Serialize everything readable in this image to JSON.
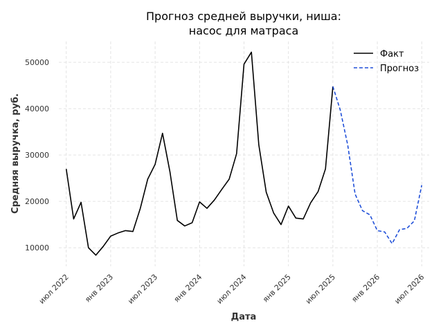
{
  "chart_data": {
    "type": "line",
    "title_line1": "Прогноз средней выручки, ниша:",
    "title_line2": "насос для матраса",
    "xlabel": "Дата",
    "ylabel": "Средняя выручка, руб.",
    "grid": true,
    "legend_position": "top-right",
    "x_tick_labels": [
      "июл 2022",
      "янв 2023",
      "июл 2023",
      "янв 2024",
      "июл 2024",
      "янв 2025",
      "июл 2025",
      "янв 2026",
      "июл 2026"
    ],
    "y_ticks": [
      10000,
      20000,
      30000,
      40000,
      50000
    ],
    "ylim": [
      6000,
      54500
    ],
    "xlim": [
      "2022-06",
      "2026-08"
    ],
    "series": [
      {
        "name": "Факт",
        "color": "#000000",
        "style": "solid",
        "x": [
          "2022-07",
          "2022-08",
          "2022-09",
          "2022-10",
          "2022-11",
          "2022-12",
          "2023-01",
          "2023-02",
          "2023-03",
          "2023-04",
          "2023-05",
          "2023-06",
          "2023-07",
          "2023-08",
          "2023-09",
          "2023-10",
          "2023-11",
          "2023-12",
          "2024-01",
          "2024-02",
          "2024-03",
          "2024-04",
          "2024-05",
          "2024-06",
          "2024-07",
          "2024-08",
          "2024-09",
          "2024-10",
          "2024-11",
          "2024-12",
          "2025-01",
          "2025-02",
          "2025-03",
          "2025-04",
          "2025-05",
          "2025-06",
          "2025-07"
        ],
        "values": [
          27000,
          16200,
          19800,
          10000,
          8400,
          10300,
          12500,
          13200,
          13700,
          13500,
          18500,
          24800,
          28000,
          34700,
          26400,
          15900,
          14700,
          15400,
          19900,
          18500,
          20300,
          22600,
          24800,
          30300,
          49600,
          52200,
          32200,
          22000,
          17500,
          15000,
          19000,
          16400,
          16200,
          19700,
          22100,
          27000,
          44800
        ]
      },
      {
        "name": "Прогноз",
        "color": "#1f4fd8",
        "style": "dashed",
        "x": [
          "2025-07",
          "2025-08",
          "2025-09",
          "2025-10",
          "2025-11",
          "2025-12",
          "2026-01",
          "2026-02",
          "2026-03",
          "2026-04",
          "2026-05",
          "2026-06",
          "2026-07"
        ],
        "values": [
          44800,
          39700,
          32200,
          21600,
          18000,
          17100,
          13700,
          13400,
          10900,
          13900,
          14200,
          15800,
          23500
        ]
      }
    ]
  }
}
